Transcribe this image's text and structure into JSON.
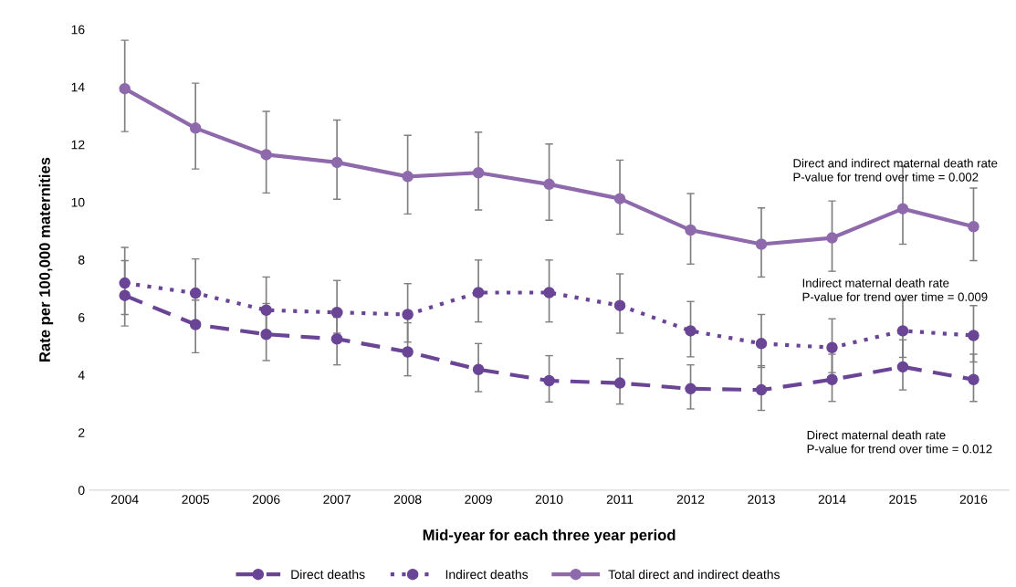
{
  "chart_data": {
    "type": "line",
    "xlabel": "Mid-year for each three year period",
    "ylabel": "Rate per 100,000 maternities",
    "categories": [
      "2004",
      "2005",
      "2006",
      "2007",
      "2008",
      "2009",
      "2010",
      "2011",
      "2012",
      "2013",
      "2014",
      "2015",
      "2016"
    ],
    "ylim": [
      0,
      16
    ],
    "yticks": [
      0,
      2,
      4,
      6,
      8,
      10,
      12,
      14,
      16
    ],
    "series": [
      {
        "name": "Direct deaths",
        "color": "#6a4596",
        "line_style": "dashed",
        "values": [
          6.76,
          5.75,
          5.41,
          5.25,
          4.8,
          4.19,
          3.8,
          3.72,
          3.52,
          3.48,
          3.84,
          4.28,
          3.84
        ],
        "errors": [
          [
            5.7,
            7.97
          ],
          [
            4.77,
            6.6
          ],
          [
            4.5,
            6.48
          ],
          [
            4.35,
            6.0
          ],
          [
            3.97,
            5.81
          ],
          [
            3.42,
            5.09
          ],
          [
            3.06,
            4.67
          ],
          [
            2.99,
            4.57
          ],
          [
            2.82,
            4.35
          ],
          [
            2.77,
            4.32
          ],
          [
            3.08,
            4.72
          ],
          [
            3.48,
            5.22
          ],
          [
            3.08,
            4.72
          ]
        ]
      },
      {
        "name": "Indirect deaths",
        "color": "#6a4596",
        "line_style": "dotted",
        "values": [
          7.19,
          6.84,
          6.25,
          6.17,
          6.1,
          6.86,
          6.86,
          6.41,
          5.53,
          5.09,
          4.95,
          5.53,
          5.37
        ],
        "errors": [
          [
            6.1,
            8.43
          ],
          [
            5.8,
            8.03
          ],
          [
            5.3,
            7.4
          ],
          [
            5.45,
            7.28
          ],
          [
            5.14,
            7.17
          ],
          [
            5.84,
            7.99
          ],
          [
            5.84,
            7.99
          ],
          [
            5.45,
            7.51
          ],
          [
            4.63,
            6.55
          ],
          [
            4.26,
            6.1
          ],
          [
            4.08,
            5.95
          ],
          [
            4.61,
            6.6
          ],
          [
            4.45,
            6.41
          ]
        ]
      },
      {
        "name": "Total direct and indirect deaths",
        "color": "#8e6aad",
        "line_style": "solid",
        "values": [
          13.94,
          12.57,
          11.65,
          11.38,
          10.89,
          11.02,
          10.62,
          10.12,
          9.03,
          8.54,
          8.76,
          9.77,
          9.15
        ],
        "errors": [
          [
            12.45,
            15.62
          ],
          [
            11.15,
            14.13
          ],
          [
            10.32,
            13.15
          ],
          [
            10.1,
            12.85
          ],
          [
            9.59,
            12.32
          ],
          [
            9.73,
            12.43
          ],
          [
            9.37,
            12.02
          ],
          [
            8.89,
            11.46
          ],
          [
            7.85,
            10.3
          ],
          [
            7.4,
            9.8
          ],
          [
            7.6,
            10.04
          ],
          [
            8.54,
            11.24
          ],
          [
            7.97,
            10.49
          ]
        ]
      }
    ],
    "marker": "circle",
    "grid": false,
    "legend": "bottom",
    "annotations": [
      "Direct and indirect maternal death rate\nP-value for trend over time = 0.002",
      "Indirect maternal death rate\nP-value for trend over time = 0.009",
      "Direct maternal death rate\nP-value for trend over time = 0.012"
    ]
  }
}
